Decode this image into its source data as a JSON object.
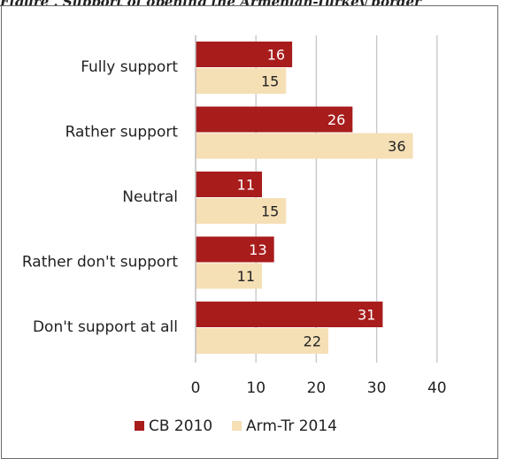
{
  "title": "Figure . Support of opening the Armenian-Turkey border",
  "chart_data": {
    "type": "bar",
    "orientation": "horizontal",
    "categories": [
      "Fully support",
      "Rather support",
      "Neutral",
      "Rather don't support",
      "Don't support at all"
    ],
    "series": [
      {
        "name": "CB 2010",
        "values": [
          16,
          26,
          11,
          13,
          31
        ],
        "color": "#a81c1c",
        "label_color": "#ffffff"
      },
      {
        "name": "Arm-Tr 2014",
        "values": [
          15,
          36,
          15,
          11,
          22
        ],
        "color": "#f5dfb5",
        "label_color": "#222222"
      }
    ],
    "xlim": [
      0,
      40
    ],
    "xticks": [
      0,
      10,
      20,
      30,
      40
    ],
    "grid": true,
    "legend": "bottom"
  }
}
